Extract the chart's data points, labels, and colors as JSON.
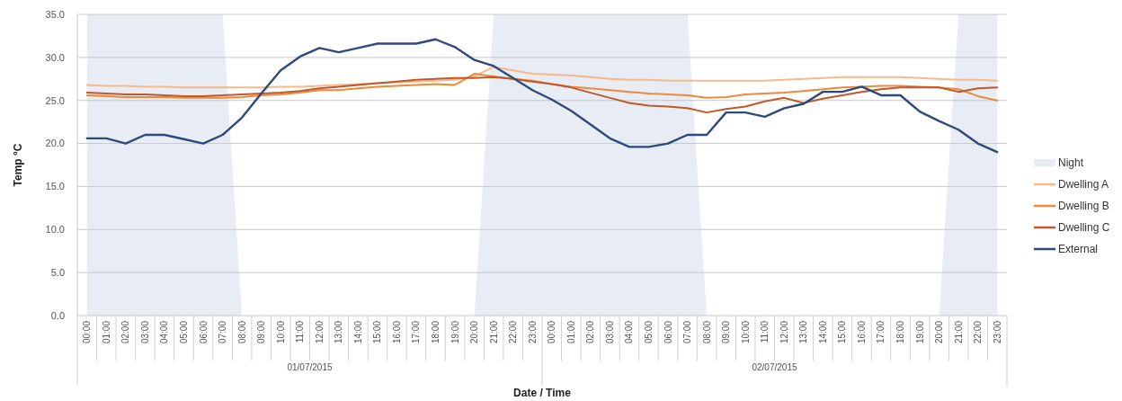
{
  "chart_data": {
    "type": "line",
    "xlabel": "Date / Time",
    "ylabel": "Temp °C",
    "categories": [
      "00:00",
      "01:00",
      "02:00",
      "03:00",
      "04:00",
      "05:00",
      "06:00",
      "07:00",
      "08:00",
      "09:00",
      "10:00",
      "11:00",
      "12:00",
      "13:00",
      "14:00",
      "15:00",
      "16:00",
      "17:00",
      "18:00",
      "19:00",
      "20:00",
      "21:00",
      "22:00",
      "23:00",
      "00:00",
      "01:00",
      "02:00",
      "03:00",
      "04:00",
      "05:00",
      "06:00",
      "07:00",
      "08:00",
      "09:00",
      "10:00",
      "11:00",
      "12:00",
      "13:00",
      "14:00",
      "15:00",
      "16:00",
      "17:00",
      "18:00",
      "19:00",
      "20:00",
      "21:00",
      "22:00",
      "23:00"
    ],
    "annotations": [
      "01/07/2015",
      "02/07/2015"
    ],
    "ylim": [
      0,
      35
    ],
    "yticks": [
      {
        "value": 0,
        "label": "0.0"
      },
      {
        "value": 5,
        "label": "5.0"
      },
      {
        "value": 10,
        "label": "10.0"
      },
      {
        "value": 15,
        "label": "15.0"
      },
      {
        "value": 20,
        "label": "20.0"
      },
      {
        "value": 25,
        "label": "25.0"
      },
      {
        "value": 30,
        "label": "30.0"
      },
      {
        "value": 35,
        "label": "35.0"
      }
    ],
    "grid": "y",
    "legend": "right",
    "series": [
      {
        "name": "Night",
        "type": "area",
        "color": "#e8ecf4",
        "values": [
          35,
          35,
          35,
          35,
          35,
          35,
          35,
          35,
          0,
          0,
          0,
          0,
          0,
          0,
          0,
          0,
          0,
          0,
          0,
          0,
          0,
          35,
          35,
          35,
          35,
          35,
          35,
          35,
          35,
          35,
          35,
          35,
          0,
          0,
          0,
          0,
          0,
          0,
          0,
          0,
          0,
          0,
          0,
          0,
          0,
          35,
          35,
          35
        ]
      },
      {
        "name": "Dwelling A",
        "color": "#f5b98a",
        "values": [
          26.8,
          26.7,
          26.7,
          26.6,
          26.6,
          26.5,
          26.5,
          26.5,
          26.5,
          26.5,
          26.6,
          26.6,
          26.7,
          26.8,
          26.9,
          27.0,
          27.1,
          27.2,
          27.3,
          27.4,
          27.8,
          28.9,
          28.5,
          28.1,
          28.0,
          27.9,
          27.7,
          27.5,
          27.4,
          27.4,
          27.3,
          27.3,
          27.3,
          27.3,
          27.3,
          27.3,
          27.4,
          27.5,
          27.6,
          27.7,
          27.7,
          27.7,
          27.7,
          27.6,
          27.5,
          27.4,
          27.4,
          27.3
        ]
      },
      {
        "name": "Dwelling B",
        "color": "#ed8a3a",
        "values": [
          25.6,
          25.5,
          25.4,
          25.4,
          25.4,
          25.3,
          25.3,
          25.3,
          25.4,
          25.6,
          25.7,
          25.9,
          26.2,
          26.2,
          26.4,
          26.6,
          26.7,
          26.8,
          26.9,
          26.8,
          28.1,
          27.8,
          27.5,
          27.3,
          26.9,
          26.6,
          26.4,
          26.2,
          26.0,
          25.8,
          25.7,
          25.6,
          25.3,
          25.4,
          25.7,
          25.8,
          25.9,
          26.1,
          26.3,
          26.5,
          26.6,
          26.7,
          26.7,
          26.6,
          26.5,
          26.3,
          25.5,
          25.0
        ]
      },
      {
        "name": "Dwelling C",
        "color": "#c0582a",
        "values": [
          25.9,
          25.8,
          25.7,
          25.7,
          25.6,
          25.5,
          25.5,
          25.6,
          25.7,
          25.8,
          25.9,
          26.1,
          26.4,
          26.6,
          26.8,
          27.0,
          27.2,
          27.4,
          27.5,
          27.6,
          27.6,
          27.7,
          27.5,
          27.2,
          26.9,
          26.5,
          25.9,
          25.3,
          24.7,
          24.4,
          24.3,
          24.1,
          23.6,
          24.0,
          24.3,
          24.9,
          25.3,
          24.7,
          25.2,
          25.6,
          26.0,
          26.3,
          26.5,
          26.5,
          26.5,
          26.0,
          26.4,
          26.5
        ]
      },
      {
        "name": "External",
        "color": "#2e4a7a",
        "values": [
          20.6,
          20.6,
          20.0,
          21.0,
          21.0,
          20.5,
          20.0,
          21.0,
          23.0,
          25.8,
          28.5,
          30.1,
          31.1,
          30.6,
          31.1,
          31.6,
          31.6,
          31.6,
          32.1,
          31.2,
          29.7,
          29.0,
          27.6,
          26.2,
          25.1,
          23.8,
          22.2,
          20.6,
          19.6,
          19.6,
          20.0,
          21.0,
          21.0,
          23.6,
          23.6,
          23.1,
          24.1,
          24.6,
          26.0,
          26.0,
          26.6,
          25.6,
          25.6,
          23.7,
          22.6,
          21.6,
          20.0,
          19.0
        ]
      }
    ]
  }
}
